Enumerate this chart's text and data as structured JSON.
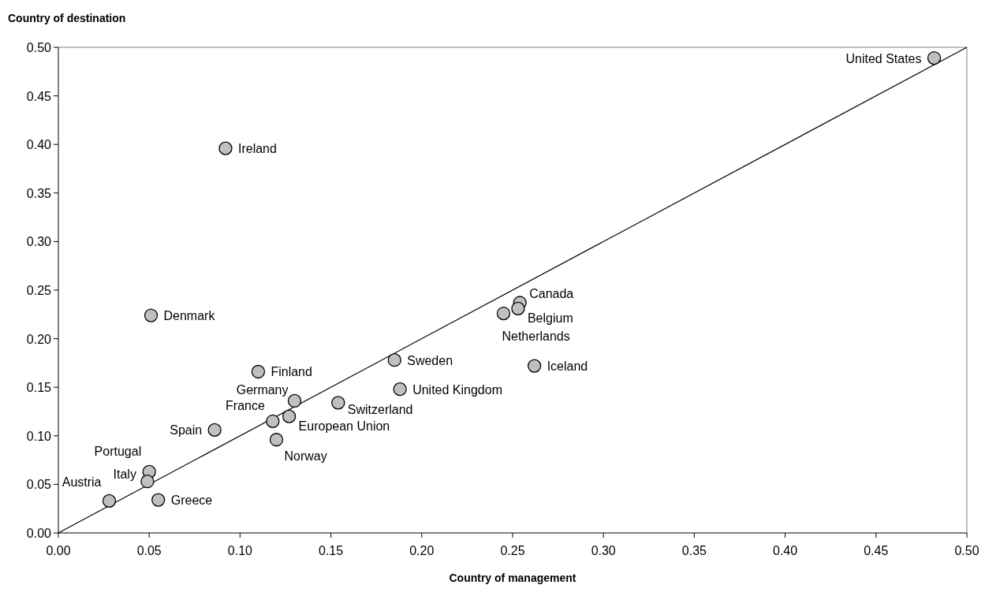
{
  "chart_data": {
    "type": "scatter",
    "xlabel": "Country of management",
    "ylabel": "Country of destination",
    "xlim": [
      0,
      0.5
    ],
    "ylim": [
      0,
      0.5
    ],
    "xticks": [
      {
        "value": 0,
        "label": "0.00"
      },
      {
        "value": 0.05,
        "label": "0.05"
      },
      {
        "value": 0.1,
        "label": "0.10"
      },
      {
        "value": 0.15,
        "label": "0.15"
      },
      {
        "value": 0.2,
        "label": "0.20"
      },
      {
        "value": 0.25,
        "label": "0.25"
      },
      {
        "value": 0.3,
        "label": "0.30"
      },
      {
        "value": 0.35,
        "label": "0.35"
      },
      {
        "value": 0.4,
        "label": "0.40"
      },
      {
        "value": 0.45,
        "label": "0.45"
      },
      {
        "value": 0.5,
        "label": "0.50"
      }
    ],
    "yticks": [
      {
        "value": 0,
        "label": "0.00"
      },
      {
        "value": 0.05,
        "label": "0.05"
      },
      {
        "value": 0.1,
        "label": "0.10"
      },
      {
        "value": 0.15,
        "label": "0.15"
      },
      {
        "value": 0.2,
        "label": "0.20"
      },
      {
        "value": 0.25,
        "label": "0.25"
      },
      {
        "value": 0.3,
        "label": "0.30"
      },
      {
        "value": 0.35,
        "label": "0.35"
      },
      {
        "value": 0.4,
        "label": "0.40"
      },
      {
        "value": 0.45,
        "label": "0.45"
      },
      {
        "value": 0.5,
        "label": "0.50"
      }
    ],
    "grid": false,
    "marker": "circle",
    "series": [
      {
        "type": "line",
        "marker": "none",
        "color": "#000000",
        "x": [
          0,
          0.5
        ],
        "values": [
          0,
          0.5
        ]
      },
      {
        "color": "#c0c0c0",
        "x": [
          0.482,
          0.092,
          0.051,
          0.11,
          0.13,
          0.118,
          0.127,
          0.12,
          0.086,
          0.05,
          0.049,
          0.028,
          0.055,
          0.154,
          0.185,
          0.188,
          0.254,
          0.253,
          0.245,
          0.262
        ],
        "values": [
          0.489,
          0.396,
          0.224,
          0.166,
          0.136,
          0.115,
          0.12,
          0.096,
          0.106,
          0.063,
          0.053,
          0.033,
          0.034,
          0.134,
          0.178,
          0.148,
          0.237,
          0.231,
          0.226,
          0.172
        ]
      }
    ],
    "annotations": [
      {
        "text": "United States",
        "x": 0.482,
        "y": 0.489
      },
      {
        "text": "Ireland",
        "x": 0.092,
        "y": 0.396
      },
      {
        "text": "Denmark",
        "x": 0.051,
        "y": 0.224
      },
      {
        "text": "Finland",
        "x": 0.11,
        "y": 0.166
      },
      {
        "text": "Germany",
        "x": 0.13,
        "y": 0.136
      },
      {
        "text": "France",
        "x": 0.118,
        "y": 0.115
      },
      {
        "text": "European Union",
        "x": 0.127,
        "y": 0.12
      },
      {
        "text": "Norway",
        "x": 0.12,
        "y": 0.096
      },
      {
        "text": "Spain",
        "x": 0.086,
        "y": 0.106
      },
      {
        "text": "Portugal",
        "x": 0.05,
        "y": 0.063
      },
      {
        "text": "Italy",
        "x": 0.049,
        "y": 0.053
      },
      {
        "text": "Austria",
        "x": 0.028,
        "y": 0.033
      },
      {
        "text": "Greece",
        "x": 0.055,
        "y": 0.034
      },
      {
        "text": "Switzerland",
        "x": 0.154,
        "y": 0.134
      },
      {
        "text": "Sweden",
        "x": 0.185,
        "y": 0.178
      },
      {
        "text": "United Kingdom",
        "x": 0.188,
        "y": 0.148
      },
      {
        "text": "Canada",
        "x": 0.254,
        "y": 0.237
      },
      {
        "text": "Belgium",
        "x": 0.253,
        "y": 0.231
      },
      {
        "text": "Netherlands",
        "x": 0.245,
        "y": 0.226
      },
      {
        "text": "Iceland",
        "x": 0.262,
        "y": 0.172
      }
    ]
  }
}
